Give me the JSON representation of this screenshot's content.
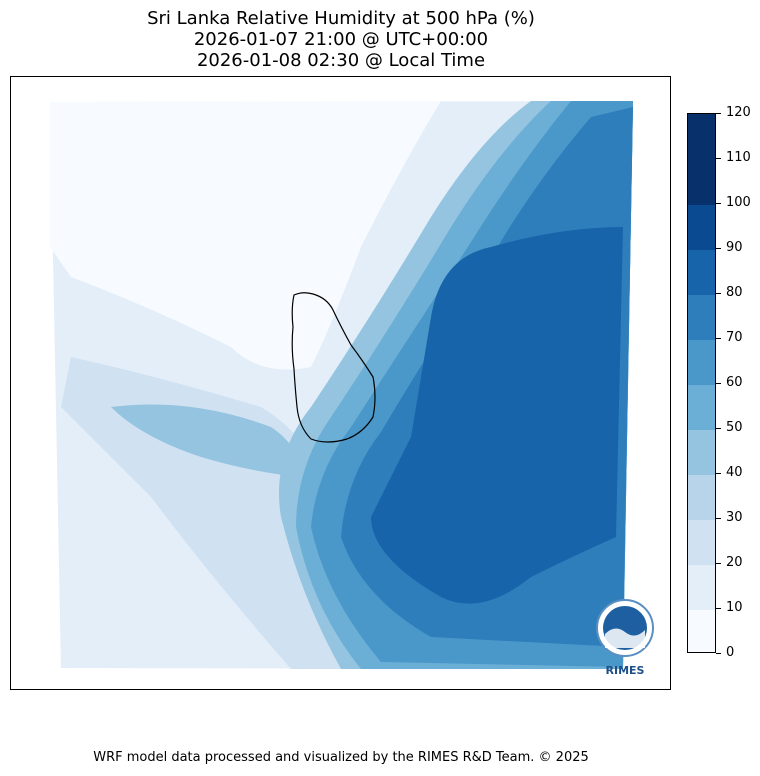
{
  "title": {
    "line1": "Sri Lanka Relative Humidity at 500 hPa (%)",
    "line2": "2026-01-07 21:00 @ UTC+00:00",
    "line3": "2026-01-08 02:30 @ Local Time"
  },
  "colorbar": {
    "levels": [
      0,
      10,
      20,
      30,
      40,
      50,
      60,
      70,
      80,
      90,
      100,
      110,
      120
    ],
    "labels": [
      "120",
      "110",
      "100",
      "90",
      "80",
      "70",
      "60",
      "50",
      "40",
      "30",
      "20",
      "10",
      "0"
    ],
    "colors": [
      "#f7fbff",
      "#e3eef9",
      "#d0e1f2",
      "#b7d4ea",
      "#94c4df",
      "#6baed6",
      "#4a98c9",
      "#2e7ebc",
      "#1764ab",
      "#0a4a90",
      "#08306b",
      "#08306b"
    ]
  },
  "logo": {
    "text": "RIMES"
  },
  "footer": "WRF model data processed and visualized by the RIMES R&D Team. © 2025"
}
